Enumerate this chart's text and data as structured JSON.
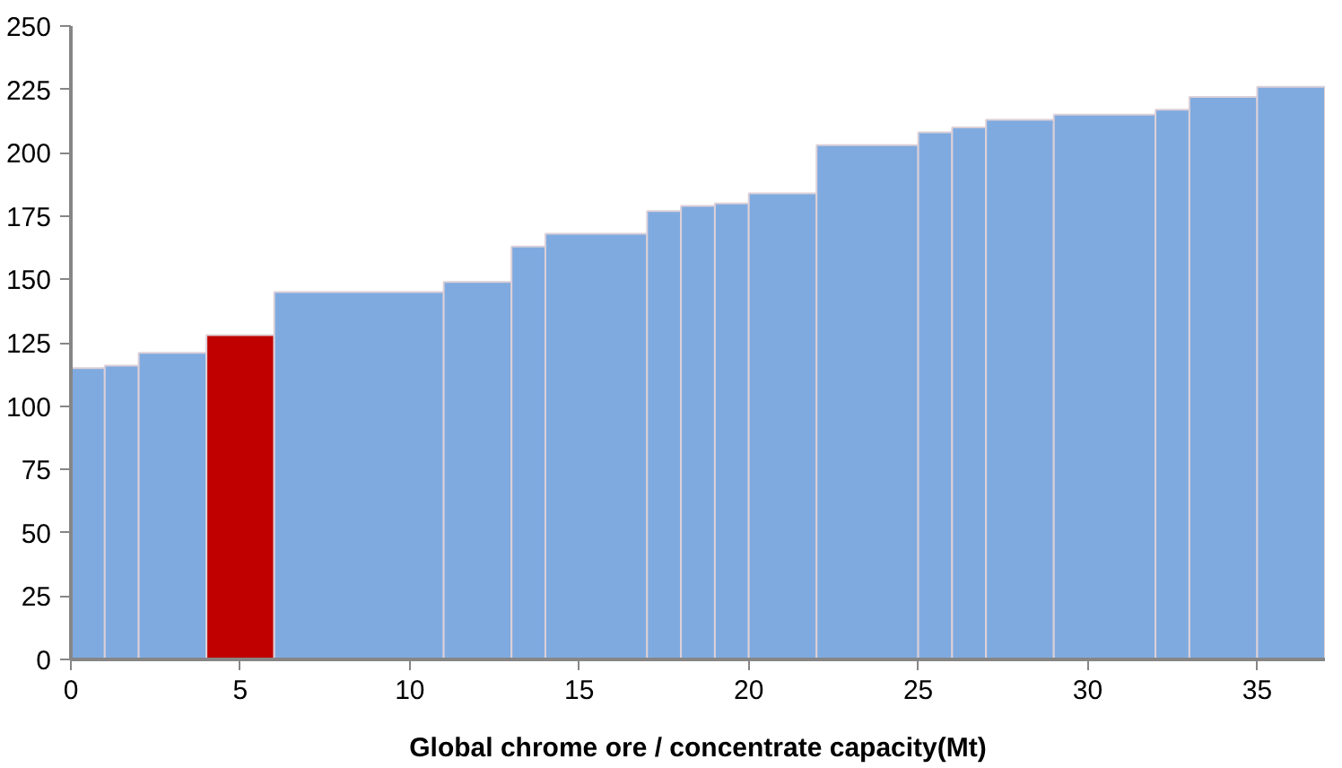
{
  "chart_data": {
    "type": "histogram",
    "xlabel": "Global chrome ore / concentrate capacity(Mt)",
    "bins": [
      0,
      1,
      2,
      4,
      6,
      11,
      13,
      14,
      17,
      18,
      19,
      20,
      22,
      25,
      26,
      27,
      29,
      32,
      33,
      35,
      37
    ],
    "values": [
      115,
      116,
      121,
      128,
      145,
      149,
      163,
      168,
      177,
      179,
      180,
      184,
      203,
      208,
      210,
      213,
      215,
      217,
      222,
      226
    ],
    "colors": [
      "#7faadf",
      "#7faadf",
      "#7faadf",
      "#c00000",
      "#7faadf",
      "#7faadf",
      "#7faadf",
      "#7faadf",
      "#7faadf",
      "#7faadf",
      "#7faadf",
      "#7faadf",
      "#7faadf",
      "#7faadf",
      "#7faadf",
      "#7faadf",
      "#7faadf",
      "#7faadf",
      "#7faadf",
      "#7faadf"
    ],
    "xlim": [
      0,
      37
    ],
    "ylim": [
      0,
      250
    ],
    "xticks": [
      0,
      5,
      10,
      15,
      20,
      25,
      30,
      35
    ],
    "yticks": [
      0,
      25,
      50,
      75,
      100,
      125,
      150,
      175,
      200,
      225,
      250
    ],
    "grid": false
  }
}
